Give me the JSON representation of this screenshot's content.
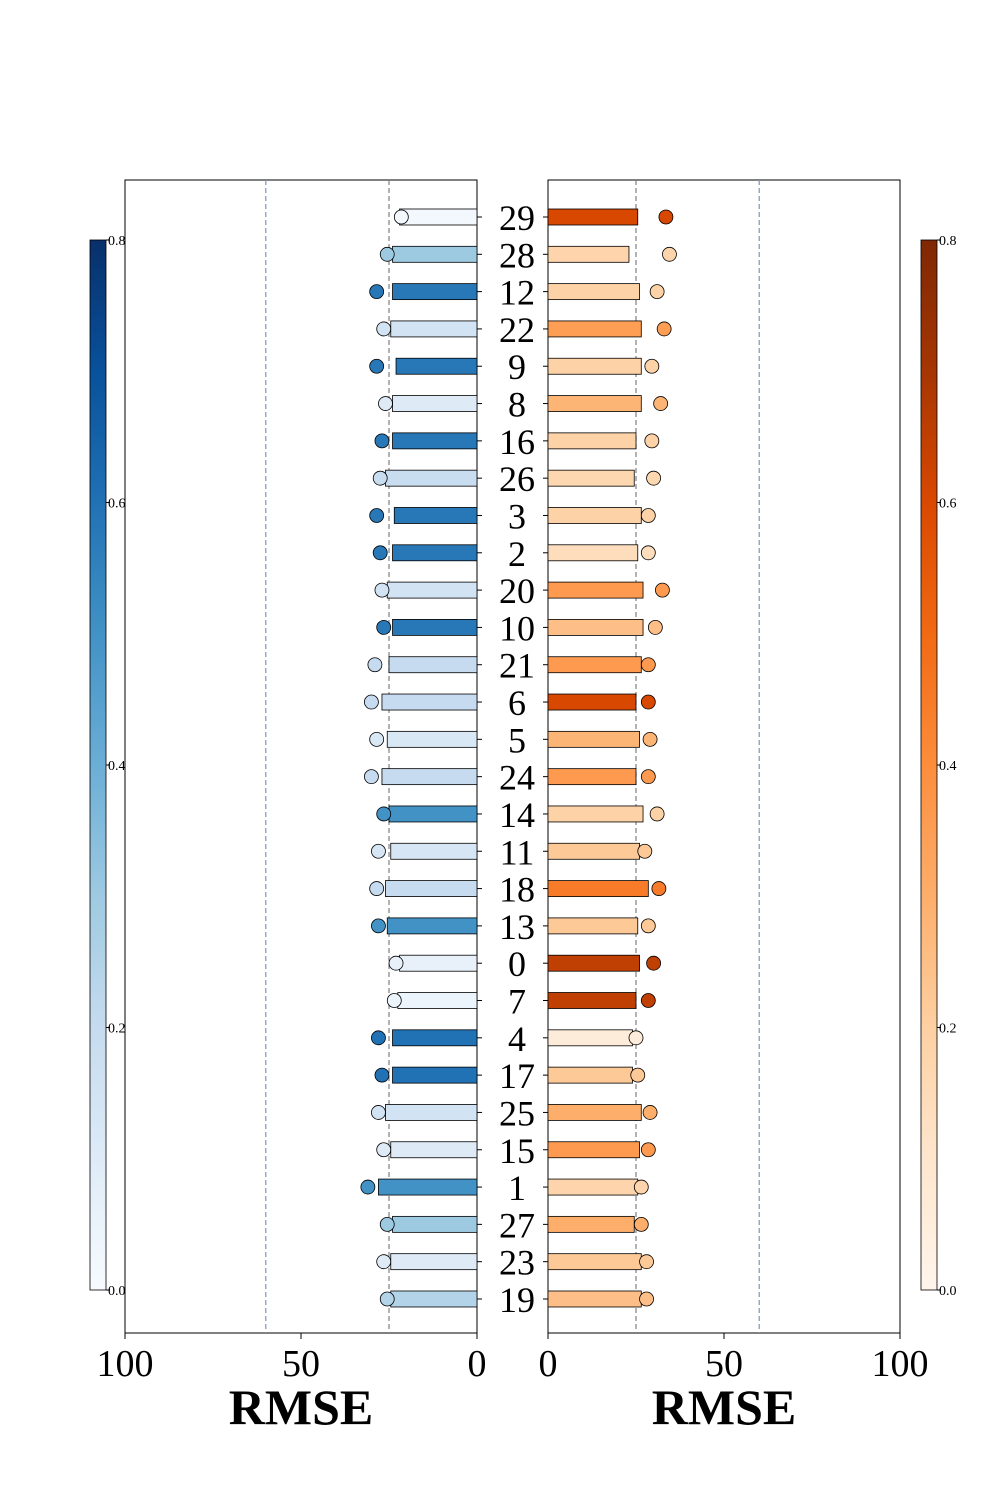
{
  "colors": {
    "left_cmap": [
      "#f7fbff",
      "#deebf7",
      "#c6dbef",
      "#9ecae1",
      "#6baed6",
      "#4292c6",
      "#2171b5",
      "#08519c",
      "#08306b"
    ],
    "right_cmap": [
      "#fff5eb",
      "#fee6ce",
      "#fdd0a2",
      "#fdae6b",
      "#fd8d3c",
      "#f16913",
      "#d94801",
      "#a63603",
      "#7f2704"
    ],
    "ref_line_gray": "#808080",
    "ref_line_blue": "#7b93c0"
  },
  "chart_data": [
    {
      "type": "bar",
      "orientation": "horizontal",
      "direction": "reversed",
      "panel": "left",
      "categories": [
        "29",
        "28",
        "12",
        "22",
        "9",
        "8",
        "16",
        "26",
        "3",
        "2",
        "20",
        "10",
        "21",
        "6",
        "5",
        "24",
        "14",
        "11",
        "18",
        "13",
        "0",
        "7",
        "4",
        "17",
        "25",
        "15",
        "1",
        "27",
        "23",
        "19"
      ],
      "series": [
        {
          "values": [
            22,
            24,
            24,
            24.5,
            23,
            24,
            24,
            26,
            23.5,
            24,
            25.5,
            24,
            25,
            27,
            25.5,
            27,
            25,
            24.5,
            26,
            25.5,
            22,
            22.5,
            24,
            24,
            26,
            24.5,
            28,
            24,
            24.5,
            24.5
          ]
        },
        {
          "values": [
            21.5,
            25.5,
            28.5,
            26.5,
            28.5,
            26,
            27,
            27.5,
            28.5,
            27.5,
            27,
            26.5,
            29,
            30,
            28.5,
            30,
            26.5,
            28,
            28.5,
            28,
            23,
            23.5,
            28,
            27,
            28,
            26.5,
            31,
            25.5,
            26.5,
            25.5
          ]
        }
      ],
      "color_values": [
        0.02,
        0.3,
        0.58,
        0.15,
        0.58,
        0.1,
        0.58,
        0.19,
        0.58,
        0.58,
        0.15,
        0.58,
        0.2,
        0.2,
        0.12,
        0.2,
        0.5,
        0.13,
        0.2,
        0.5,
        0.06,
        0.04,
        0.6,
        0.6,
        0.15,
        0.1,
        0.5,
        0.3,
        0.1,
        0.25
      ],
      "xlim": [
        100,
        0
      ],
      "xticks": [
        100,
        50,
        0
      ],
      "xlabel": "RMSE",
      "reference_lines": [
        25,
        60
      ],
      "colorbar": {
        "range": [
          0,
          0.8
        ],
        "ticks": [
          "0.0",
          "0.2",
          "0.4",
          "0.6",
          "0.8"
        ],
        "placement": "left"
      }
    },
    {
      "type": "bar",
      "orientation": "horizontal",
      "panel": "right",
      "categories": [
        "29",
        "28",
        "12",
        "22",
        "9",
        "8",
        "16",
        "26",
        "3",
        "2",
        "20",
        "10",
        "21",
        "6",
        "5",
        "24",
        "14",
        "11",
        "18",
        "13",
        "0",
        "7",
        "4",
        "17",
        "25",
        "15",
        "1",
        "27",
        "23",
        "19"
      ],
      "series": [
        {
          "values": [
            25.5,
            23,
            26,
            26.5,
            26.5,
            26.5,
            25,
            24.5,
            26.5,
            25.5,
            27,
            27,
            26.5,
            25,
            26,
            25,
            27,
            26,
            28.5,
            25.5,
            26,
            25,
            24,
            24,
            26.5,
            26,
            25.5,
            24.5,
            26.5,
            26.5
          ]
        },
        {
          "values": [
            33.5,
            34.5,
            31,
            33,
            29.5,
            32,
            29.5,
            30,
            28.5,
            28.5,
            32.5,
            30.5,
            28.5,
            28.5,
            29,
            28.5,
            31,
            27.5,
            31.5,
            28.5,
            30,
            28.5,
            25,
            25.5,
            29,
            28.5,
            26.5,
            26.5,
            28,
            28
          ]
        }
      ],
      "color_values": [
        0.6,
        0.18,
        0.19,
        0.35,
        0.19,
        0.28,
        0.19,
        0.17,
        0.19,
        0.14,
        0.36,
        0.25,
        0.36,
        0.6,
        0.28,
        0.36,
        0.19,
        0.22,
        0.45,
        0.22,
        0.65,
        0.65,
        0.06,
        0.22,
        0.3,
        0.36,
        0.18,
        0.3,
        0.22,
        0.25
      ],
      "xlim": [
        0,
        100
      ],
      "xticks": [
        0,
        50,
        100
      ],
      "xlabel": "RMSE",
      "reference_lines": [
        25,
        60
      ],
      "colorbar": {
        "range": [
          0,
          0.8
        ],
        "ticks": [
          "0.0",
          "0.2",
          "0.4",
          "0.6",
          "0.8"
        ],
        "placement": "right"
      }
    }
  ]
}
